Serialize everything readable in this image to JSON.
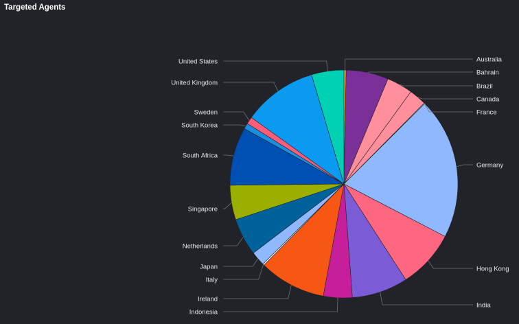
{
  "panel": {
    "title": "Targeted Agents"
  },
  "chart_data": {
    "type": "pie",
    "title": "Targeted Agents",
    "slices": [
      {
        "label": "Australia",
        "value": 0.3,
        "color": "#f5a623",
        "side": "right"
      },
      {
        "label": "Bahrain",
        "value": 5.9,
        "color": "#7b2f98",
        "side": "right"
      },
      {
        "label": "Brazil",
        "value": 3.6,
        "color": "#ff8f9b",
        "side": "right"
      },
      {
        "label": "Canada",
        "value": 2.4,
        "color": "#ff8f9b",
        "side": "right"
      },
      {
        "label": "France",
        "value": 0.1,
        "color": "#e0e0e0",
        "side": "right"
      },
      {
        "label": "Germany",
        "value": 19.7,
        "color": "#8fb8ff",
        "side": "right"
      },
      {
        "label": "Hong Kong",
        "value": 8.1,
        "color": "#ff6680",
        "side": "right"
      },
      {
        "label": "India",
        "value": 7.8,
        "color": "#7b5cd6",
        "side": "right"
      },
      {
        "label": "Indonesia",
        "value": 4.0,
        "color": "#c71f9c",
        "side": "left"
      },
      {
        "label": "Ireland",
        "value": 9.3,
        "color": "#f75712",
        "side": "left"
      },
      {
        "label": "Italy",
        "value": 0.2,
        "color": "#ffffff",
        "side": "left"
      },
      {
        "label": "Japan",
        "value": 2.0,
        "color": "#8fb8ff",
        "side": "left"
      },
      {
        "label": "Netherlands",
        "value": 5.2,
        "color": "#00629b",
        "side": "left"
      },
      {
        "label": "Singapore",
        "value": 4.8,
        "color": "#9aaf00",
        "side": "left"
      },
      {
        "label": "South Africa",
        "value": 8.1,
        "color": "#004fb3",
        "side": "left"
      },
      {
        "label": "South Korea",
        "value": 0.8,
        "color": "#1a8fe0",
        "side": "left"
      },
      {
        "label": "Sweden",
        "value": 1.0,
        "color": "#ff5c7a",
        "side": "left"
      },
      {
        "label": "United Kingdom",
        "value": 10.3,
        "color": "#0a9af0",
        "side": "left"
      },
      {
        "label": "United States",
        "value": 4.5,
        "color": "#00d1b2",
        "side": "left"
      }
    ]
  }
}
